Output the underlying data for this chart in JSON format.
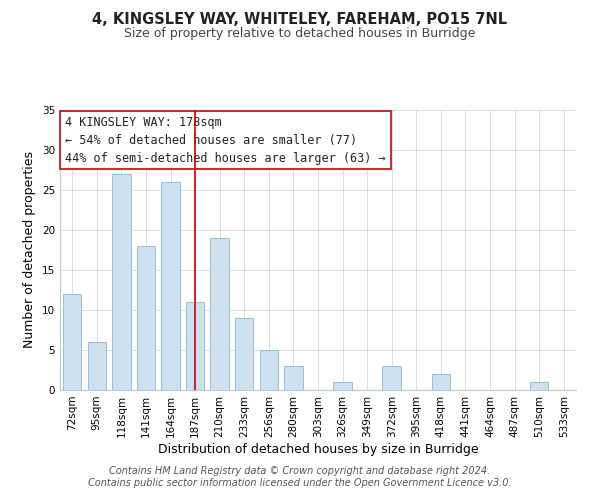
{
  "title": "4, KINGSLEY WAY, WHITELEY, FAREHAM, PO15 7NL",
  "subtitle": "Size of property relative to detached houses in Burridge",
  "xlabel": "Distribution of detached houses by size in Burridge",
  "ylabel": "Number of detached properties",
  "bin_labels": [
    "72sqm",
    "95sqm",
    "118sqm",
    "141sqm",
    "164sqm",
    "187sqm",
    "210sqm",
    "233sqm",
    "256sqm",
    "280sqm",
    "303sqm",
    "326sqm",
    "349sqm",
    "372sqm",
    "395sqm",
    "418sqm",
    "441sqm",
    "464sqm",
    "487sqm",
    "510sqm",
    "533sqm"
  ],
  "bar_values": [
    12,
    6,
    27,
    18,
    26,
    11,
    19,
    9,
    5,
    3,
    0,
    1,
    0,
    3,
    0,
    2,
    0,
    0,
    0,
    1,
    0
  ],
  "bar_color": "#cde0f0",
  "bar_edge_color": "#9bbdd6",
  "vline_x_index": 5,
  "vline_color": "#cc0000",
  "ylim": [
    0,
    35
  ],
  "yticks": [
    0,
    5,
    10,
    15,
    20,
    25,
    30,
    35
  ],
  "annotation_title": "4 KINGSLEY WAY: 178sqm",
  "annotation_line1": "← 54% of detached houses are smaller (77)",
  "annotation_line2": "44% of semi-detached houses are larger (63) →",
  "footer_line1": "Contains HM Land Registry data © Crown copyright and database right 2024.",
  "footer_line2": "Contains public sector information licensed under the Open Government Licence v3.0.",
  "title_fontsize": 10.5,
  "subtitle_fontsize": 9,
  "axis_label_fontsize": 9,
  "tick_fontsize": 7.5,
  "annotation_fontsize": 8.5,
  "footer_fontsize": 7
}
